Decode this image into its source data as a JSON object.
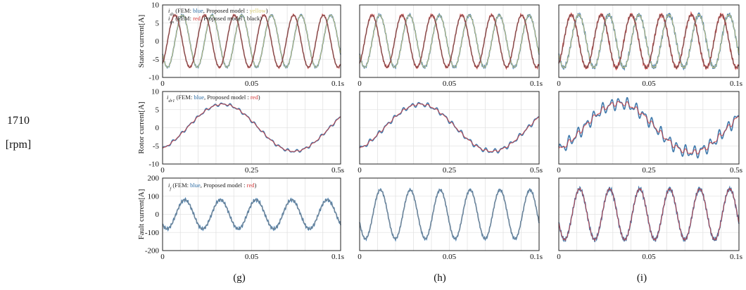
{
  "row_label": {
    "speed": "1710",
    "unit": "[rpm]"
  },
  "column_captions": [
    "(g)",
    "(h)",
    "(i)"
  ],
  "legends": {
    "stator_line1": {
      "var": "i",
      "sub": "ds",
      "prefix": " (FEM: ",
      "fem": "blue",
      "mid": ", Proposed model : ",
      "model": "yellow",
      "suffix": ")"
    },
    "stator_line2": {
      "var": "i",
      "sub": "qs",
      "prefix": " (FEM: ",
      "fem": "red",
      "mid": ", Proposed model : ",
      "model": "black",
      "suffix": ")"
    },
    "rotor": {
      "var": "i",
      "sub": "dr1",
      "prefix": " (FEM: ",
      "fem": "blue",
      "mid": ", Proposed model : ",
      "model": "red",
      "suffix": ")"
    },
    "fault": {
      "var": "i",
      "sub": "f",
      "prefix": " (FEM: ",
      "fem": "blue",
      "mid": ", Proposed model : ",
      "model": "red",
      "suffix": ")"
    }
  },
  "colors": {
    "fem_blue": "#2e6da4",
    "model_yellow": "#d8cc72",
    "fem_red": "#d43a3a",
    "model_black": "#555555",
    "model_red": "#d43a3a",
    "trace_gray": "#8a8a8a",
    "grid": "#e3e3e3",
    "axis": "#222222"
  },
  "chart_data": [
    {
      "id": "stator-g",
      "panel": "(g)",
      "type": "line",
      "ylabel": "Stator current[A]",
      "xlim": [
        0,
        0.1
      ],
      "ylim": [
        -10,
        10
      ],
      "xticks": [
        0,
        0.05,
        0.1
      ],
      "xtick_labels": [
        "0",
        "0.05",
        "0.1s"
      ],
      "yticks": [
        -10,
        -5,
        0,
        5,
        10
      ],
      "ytick_labels": [
        "-10",
        "-5",
        "0",
        "5",
        "10"
      ],
      "grid": true,
      "legend": "stator",
      "series": [
        {
          "name": "ids",
          "amplitude": 7.2,
          "frequency_hz": 60,
          "phase_deg": 210,
          "color": "#2e6da4",
          "overlay_color": "#d8cc72",
          "ripple": 0.15
        },
        {
          "name": "iqs",
          "amplitude": 7.2,
          "frequency_hz": 60,
          "phase_deg": 300,
          "color": "#d43a3a",
          "overlay_color": "#555555",
          "ripple": 0.15
        }
      ]
    },
    {
      "id": "stator-h",
      "panel": "(h)",
      "type": "line",
      "xlim": [
        0,
        0.1
      ],
      "ylim": [
        -10,
        10
      ],
      "xticks": [
        0,
        0.05,
        0.1
      ],
      "xtick_labels": [
        "0",
        "0.05",
        "0.1s"
      ],
      "yticks": [
        -10,
        -5,
        0,
        5,
        10
      ],
      "ytick_labels": [],
      "grid": true,
      "series": [
        {
          "name": "ids",
          "amplitude": 7.2,
          "frequency_hz": 60,
          "phase_deg": 210,
          "color": "#2e6da4",
          "overlay_color": "#d8cc72",
          "ripple": 0.2
        },
        {
          "name": "iqs",
          "amplitude": 7.2,
          "frequency_hz": 60,
          "phase_deg": 300,
          "color": "#d43a3a",
          "overlay_color": "#555555",
          "ripple": 0.2
        }
      ]
    },
    {
      "id": "stator-i",
      "panel": "(i)",
      "type": "line",
      "xlim": [
        0,
        0.1
      ],
      "ylim": [
        -10,
        10
      ],
      "xticks": [
        0,
        0.05,
        0.1
      ],
      "xtick_labels": [
        "0",
        "0.05",
        "0.1s"
      ],
      "yticks": [
        -10,
        -5,
        0,
        5,
        10
      ],
      "ytick_labels": [],
      "grid": true,
      "series": [
        {
          "name": "ids",
          "amplitude": 7.3,
          "frequency_hz": 60,
          "phase_deg": 210,
          "color": "#2e6da4",
          "overlay_color": "#d8cc72",
          "ripple": 0.35
        },
        {
          "name": "iqs",
          "amplitude": 7.3,
          "frequency_hz": 60,
          "phase_deg": 300,
          "color": "#d43a3a",
          "overlay_color": "#555555",
          "ripple": 0.35
        }
      ]
    },
    {
      "id": "rotor-g",
      "panel": "(g)",
      "type": "line",
      "ylabel": "Rotor current[A]",
      "xlim": [
        0,
        0.5
      ],
      "ylim": [
        -10,
        10
      ],
      "xticks": [
        0,
        0.25,
        0.5
      ],
      "xtick_labels": [
        "0",
        "0.25",
        "0.5s"
      ],
      "yticks": [
        -10,
        -5,
        0,
        5,
        10
      ],
      "ytick_labels": [
        "-10",
        "-5",
        "0",
        "5",
        "10"
      ],
      "grid": true,
      "legend": "rotor",
      "series": [
        {
          "name": "idr1",
          "amplitude": 6.5,
          "frequency_hz": 2.5,
          "phase_deg": -62,
          "color": "#2e6da4",
          "overlay_color": "#d43a3a",
          "ripple": 0.3
        }
      ]
    },
    {
      "id": "rotor-h",
      "panel": "(h)",
      "type": "line",
      "xlim": [
        0,
        0.5
      ],
      "ylim": [
        -10,
        10
      ],
      "xticks": [
        0,
        0.25,
        0.5
      ],
      "xtick_labels": [
        "0",
        "0.25",
        "0.5s"
      ],
      "yticks": [
        -10,
        -5,
        0,
        5,
        10
      ],
      "ytick_labels": [],
      "grid": true,
      "series": [
        {
          "name": "idr1",
          "amplitude": 6.5,
          "frequency_hz": 2.5,
          "phase_deg": -62,
          "color": "#2e6da4",
          "overlay_color": "#d43a3a",
          "ripple": 0.45
        }
      ]
    },
    {
      "id": "rotor-i",
      "panel": "(i)",
      "type": "line",
      "xlim": [
        0,
        0.5
      ],
      "ylim": [
        -10,
        10
      ],
      "xticks": [
        0,
        0.25,
        0.5
      ],
      "xtick_labels": [
        "0",
        "0.25",
        "0.5s"
      ],
      "yticks": [
        -10,
        -5,
        0,
        5,
        10
      ],
      "ytick_labels": [],
      "grid": true,
      "series": [
        {
          "name": "idr1",
          "amplitude": 6.8,
          "frequency_hz": 2.5,
          "phase_deg": -62,
          "color": "#2e6da4",
          "overlay_color": "#d43a3a",
          "ripple": 1.2
        }
      ]
    },
    {
      "id": "fault-g",
      "panel": "(g)",
      "type": "line",
      "ylabel": "Fault current[A]",
      "xlim": [
        0,
        0.1
      ],
      "ylim": [
        -200,
        200
      ],
      "xticks": [
        0,
        0.05,
        0.1
      ],
      "xtick_labels": [
        "0",
        "0.05",
        "0.1s"
      ],
      "yticks": [
        -200,
        -100,
        0,
        100,
        200
      ],
      "ytick_labels": [
        "-200",
        "-100",
        "0",
        "100",
        "200"
      ],
      "grid": true,
      "legend": "fault",
      "series": [
        {
          "name": "if",
          "amplitude": 80,
          "frequency_hz": 50,
          "phase_deg": 225,
          "color": "#2e6da4",
          "overlay_color": "#8a8a8a",
          "ripple": 5
        }
      ]
    },
    {
      "id": "fault-h",
      "panel": "(h)",
      "type": "line",
      "xlim": [
        0,
        0.1
      ],
      "ylim": [
        -200,
        200
      ],
      "xticks": [
        0,
        0.05,
        0.1
      ],
      "xtick_labels": [
        "0",
        "0.05",
        "0.1s"
      ],
      "yticks": [
        -200,
        -100,
        0,
        100,
        200
      ],
      "ytick_labels": [],
      "grid": true,
      "series": [
        {
          "name": "if",
          "amplitude": 135,
          "frequency_hz": 60,
          "phase_deg": 200,
          "color": "#2e6da4",
          "overlay_color": "#8a8a8a",
          "ripple": 4
        }
      ]
    },
    {
      "id": "fault-i",
      "panel": "(i)",
      "type": "line",
      "xlim": [
        0,
        0.1
      ],
      "ylim": [
        -200,
        200
      ],
      "xticks": [
        0,
        0.05,
        0.1
      ],
      "xtick_labels": [
        "0",
        "0.05",
        "0.1s"
      ],
      "yticks": [
        -200,
        -100,
        0,
        100,
        200
      ],
      "ytick_labels": [],
      "grid": true,
      "series": [
        {
          "name": "if",
          "amplitude": 140,
          "frequency_hz": 60,
          "phase_deg": 200,
          "color": "#2e6da4",
          "overlay_color": "#d43a3a",
          "ripple": 8
        }
      ]
    }
  ]
}
